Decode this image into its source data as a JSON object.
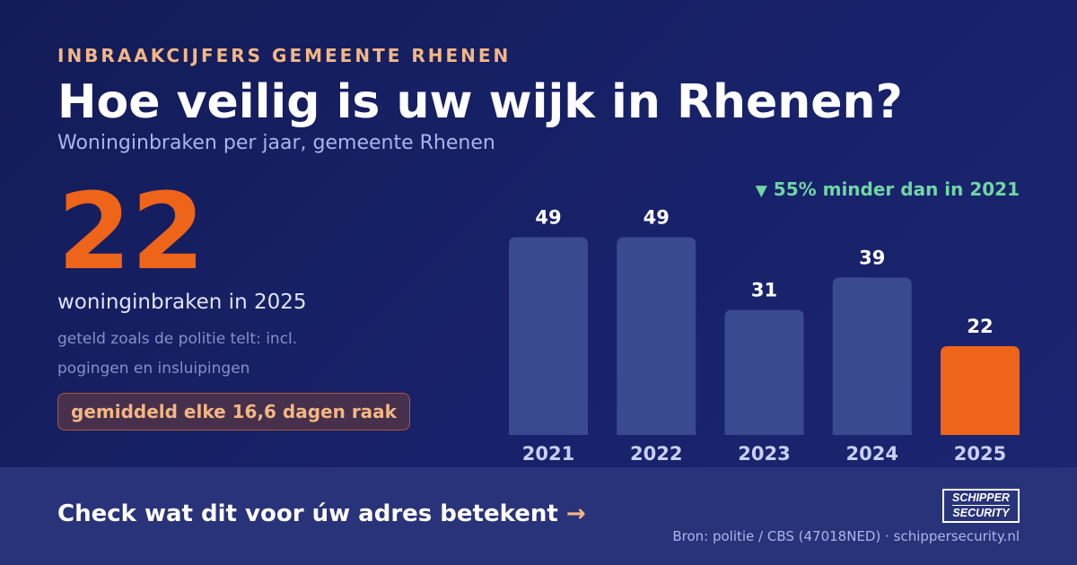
{
  "header": {
    "eyebrow": "INBRAAKCIJFERS GEMEENTE RHENEN",
    "title": "Hoe veilig is uw wijk in Rhenen?",
    "subtitle": "Woninginbraken per jaar, gemeente Rhenen"
  },
  "highlight": {
    "number": "22",
    "label": "woninginbraken in 2025",
    "note": "geteld zoals de politie telt: incl. pogingen en insluipingen",
    "badge": "gemiddeld elke 16,6 dagen raak"
  },
  "chart_data": {
    "type": "bar",
    "title": "",
    "xlabel": "",
    "ylabel": "",
    "categories": [
      "2021",
      "2022",
      "2023",
      "2024",
      "2025"
    ],
    "values": [
      49,
      49,
      31,
      39,
      22
    ],
    "highlight_category": "2025",
    "annotation": "55% minder dan in 2021",
    "annotation_icon": "down-triangle",
    "grid": false,
    "colors": {
      "bar": "#3a4a8f",
      "highlight": "#ee6418",
      "label": "#ffffff",
      "tick": "#c8d0f3",
      "annotation": "#6fd6a4"
    }
  },
  "footer": {
    "cta": "Check wat dit voor úw adres betekent",
    "cta_arrow": "→",
    "logo_line1": "SCHIPPER",
    "logo_line2": "SECURITY",
    "source": "Bron: politie / CBS (47018NED) · schippersecurity.nl"
  }
}
